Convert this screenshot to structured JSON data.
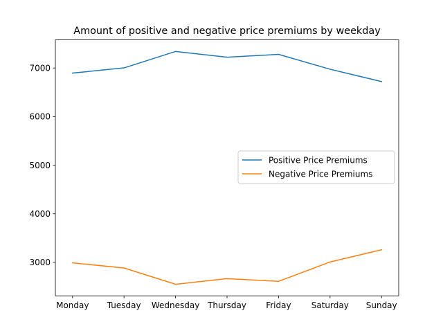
{
  "chart_data": {
    "type": "line",
    "title": "Amount of positive and negative price premiums by weekday",
    "xlabel": "",
    "ylabel": "",
    "categories": [
      "Monday",
      "Tuesday",
      "Wednesday",
      "Thursday",
      "Friday",
      "Saturday",
      "Sunday"
    ],
    "series": [
      {
        "name": "Positive Price Premiums",
        "color": "#1f77b4",
        "values": [
          6895,
          7002,
          7340,
          7222,
          7280,
          6975,
          6720
        ]
      },
      {
        "name": "Negative Price Premiums",
        "color": "#ff7f0e",
        "values": [
          2990,
          2885,
          2550,
          2665,
          2610,
          3008,
          3260
        ]
      }
    ],
    "yticks": [
      3000,
      4000,
      5000,
      6000,
      7000
    ],
    "ylim": [
      2312,
      7578
    ],
    "grid": false,
    "legend_position": "center-right"
  }
}
